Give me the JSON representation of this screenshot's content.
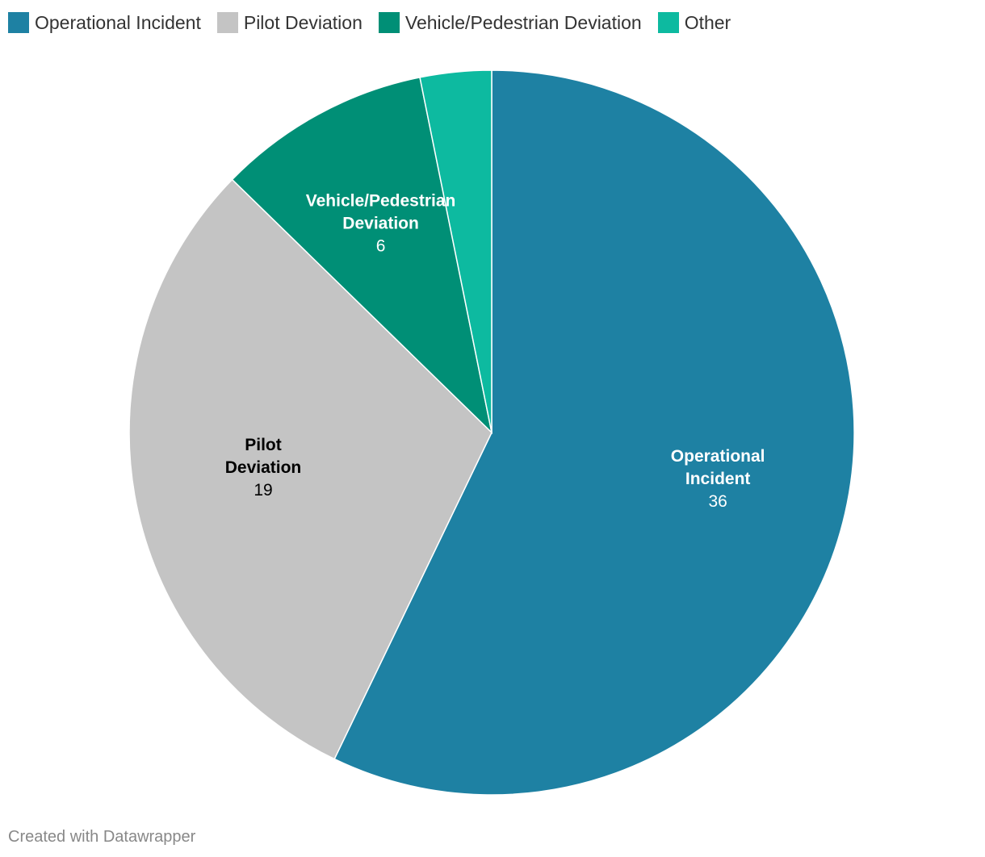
{
  "chart_data": {
    "type": "pie",
    "categories": [
      "Operational Incident",
      "Pilot Deviation",
      "Vehicle/Pedestrian Deviation",
      "Other"
    ],
    "values": [
      36,
      19,
      6,
      2
    ],
    "colors": [
      "#1e81a3",
      "#c4c4c4",
      "#008f76",
      "#0dbaa0"
    ],
    "label_colors": [
      "#ffffff",
      "#000000",
      "#ffffff",
      "#ffffff"
    ],
    "slice_labels": [
      {
        "lines": [
          "Operational",
          "Incident"
        ],
        "value": "36"
      },
      {
        "lines": [
          "Pilot",
          "Deviation"
        ],
        "value": "19"
      },
      {
        "lines": [
          "Vehicle/Pedestrian",
          "Deviation"
        ],
        "value": "6"
      },
      null
    ],
    "legend_placement": "top-left",
    "start": "top",
    "direction": "clockwise"
  },
  "legend": {
    "items": [
      {
        "label": "Operational Incident",
        "color": "#1e81a3"
      },
      {
        "label": "Pilot Deviation",
        "color": "#c4c4c4"
      },
      {
        "label": "Vehicle/Pedestrian Deviation",
        "color": "#008f76"
      },
      {
        "label": "Other",
        "color": "#0dbaa0"
      }
    ]
  },
  "footer": {
    "credit": "Created with Datawrapper"
  }
}
